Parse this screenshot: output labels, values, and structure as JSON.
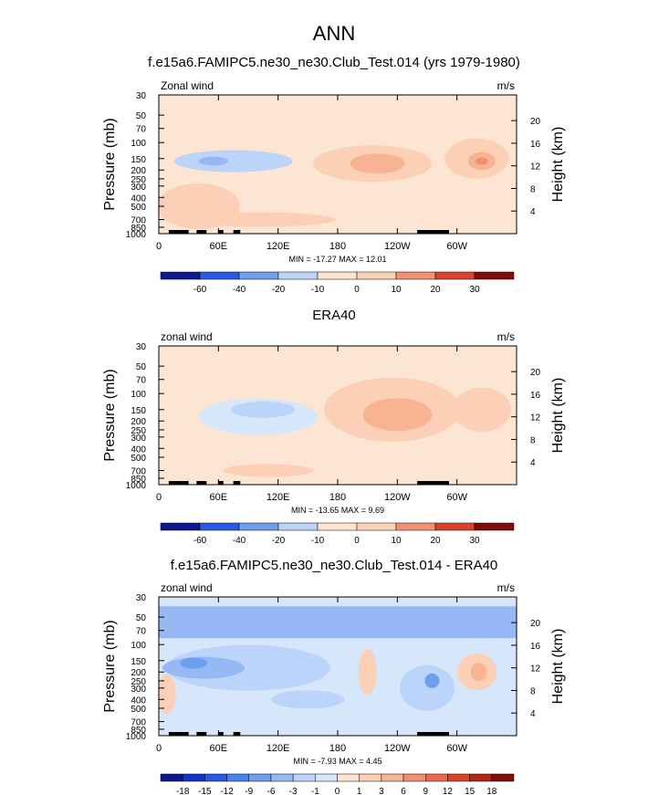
{
  "figure": {
    "title": "ANN"
  },
  "colors": {
    "diverging": [
      "#0a1a8c",
      "#1432c8",
      "#285ae6",
      "#4682eb",
      "#6e9ef0",
      "#96b9f5",
      "#bcd4fa",
      "#d6e6fb",
      "#fce5d2",
      "#fcd0b6",
      "#f8b393",
      "#f39070",
      "#ea6a4b",
      "#d9432b",
      "#b42516",
      "#800c0c"
    ]
  },
  "chart_data": [
    {
      "type": "heatmap",
      "title": "f.e15a6.FAMIPC5.ne30_ne30.Club_Test.014 (yrs 1979-1980)",
      "left_label": "Zonal wind",
      "units": "m/s",
      "xlabel": "",
      "ylabel": "Pressure (mb)",
      "ylabel_right": "Height (km)",
      "x_ticks": [
        "0",
        "60E",
        "120E",
        "180",
        "120W",
        "60W"
      ],
      "y_ticks": [
        "30",
        "50",
        "70",
        "100",
        "150",
        "200",
        "250",
        "300",
        "400",
        "500",
        "700",
        "850",
        "1000"
      ],
      "y_ticks_right": [
        "20",
        "16",
        "12",
        "8",
        "4"
      ],
      "stats": "MIN = -17.27  MAX =  12.01",
      "colorbar_levels": [
        "-60",
        "-40",
        "-20",
        "-10",
        "0",
        "10",
        "20",
        "30"
      ],
      "features": [
        {
          "lon": 180,
          "p": 150,
          "value": 12.01
        },
        {
          "lon": 290,
          "p": 150,
          "value": 11
        },
        {
          "lon": 50,
          "p": 150,
          "value": -17.27
        }
      ]
    },
    {
      "type": "heatmap",
      "title": "ERA40",
      "left_label": "zonal wind",
      "units": "m/s",
      "xlabel": "",
      "ylabel": "Pressure (mb)",
      "ylabel_right": "Height (km)",
      "x_ticks": [
        "0",
        "60E",
        "120E",
        "180",
        "120W",
        "60W"
      ],
      "y_ticks": [
        "30",
        "50",
        "70",
        "100",
        "150",
        "200",
        "250",
        "300",
        "400",
        "500",
        "700",
        "850",
        "1000"
      ],
      "y_ticks_right": [
        "20",
        "16",
        "12",
        "8",
        "4"
      ],
      "stats": "MIN = -13.65  MAX =  9.69",
      "colorbar_levels": [
        "-60",
        "-40",
        "-20",
        "-10",
        "0",
        "10",
        "20",
        "30"
      ],
      "features": [
        {
          "lon": 220,
          "p": 150,
          "value": 9.69
        },
        {
          "lon": 315,
          "p": 120,
          "value": 8
        },
        {
          "lon": 100,
          "p": 150,
          "value": -13.65
        }
      ]
    },
    {
      "type": "heatmap",
      "title": "f.e15a6.FAMIPC5.ne30_ne30.Club_Test.014 - ERA40",
      "left_label": "zonal wind",
      "units": "m/s",
      "xlabel": "",
      "ylabel": "Pressure (mb)",
      "ylabel_right": "Height (km)",
      "x_ticks": [
        "0",
        "60E",
        "120E",
        "180",
        "120W",
        "60W"
      ],
      "y_ticks": [
        "30",
        "50",
        "70",
        "100",
        "150",
        "200",
        "250",
        "300",
        "400",
        "500",
        "700",
        "850",
        "1000"
      ],
      "y_ticks_right": [
        "20",
        "16",
        "12",
        "8",
        "4"
      ],
      "stats": "MIN = -7.93  MAX =  4.45",
      "colorbar_levels": [
        "-18",
        "-15",
        "-12",
        "-9",
        "-6",
        "-3",
        "-1",
        "0",
        "1",
        "3",
        "6",
        "9",
        "12",
        "15",
        "18"
      ],
      "features": [
        {
          "lon": 320,
          "p": 200,
          "value": 4.45
        },
        {
          "lon": 45,
          "p": 170,
          "value": -7.93
        },
        {
          "lon": 270,
          "p": 200,
          "value": -6
        }
      ]
    }
  ]
}
